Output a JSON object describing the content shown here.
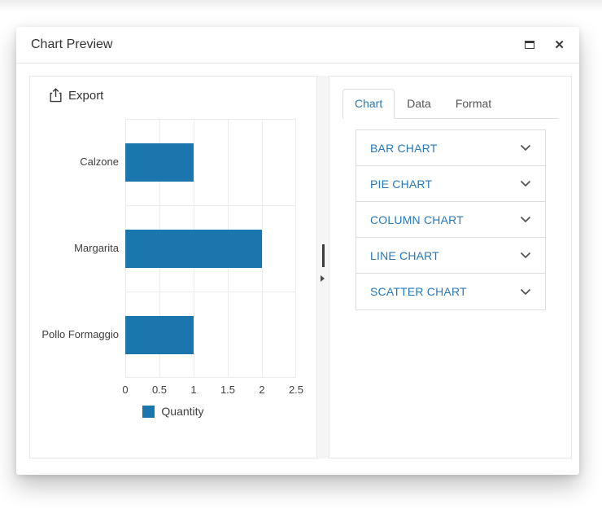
{
  "window": {
    "title": "Chart Preview",
    "controls": {
      "maximize": "maximize",
      "close": "close"
    }
  },
  "left_panel": {
    "export_label": "Export"
  },
  "right_panel": {
    "tabs": [
      {
        "label": "Chart",
        "active": true
      },
      {
        "label": "Data",
        "active": false
      },
      {
        "label": "Format",
        "active": false
      }
    ],
    "chart_types": [
      {
        "label": "BAR CHART"
      },
      {
        "label": "PIE CHART"
      },
      {
        "label": "COLUMN CHART"
      },
      {
        "label": "LINE CHART"
      },
      {
        "label": "SCATTER CHART"
      }
    ]
  },
  "chart_data": {
    "type": "bar",
    "orientation": "horizontal",
    "title": "",
    "categories": [
      "Calzone",
      "Margarita",
      "Pollo Formaggio"
    ],
    "series": [
      {
        "name": "Quantity",
        "values": [
          1,
          2,
          1
        ]
      }
    ],
    "xlim": [
      0,
      2.5
    ],
    "xticks": [
      0,
      0.5,
      1,
      1.5,
      2,
      2.5
    ],
    "grid": true,
    "legend": {
      "label": "Quantity",
      "position": "bottom"
    },
    "colors": {
      "bar": "#1c76ae",
      "grid": "#ececec",
      "accent": "#2878b9"
    }
  }
}
